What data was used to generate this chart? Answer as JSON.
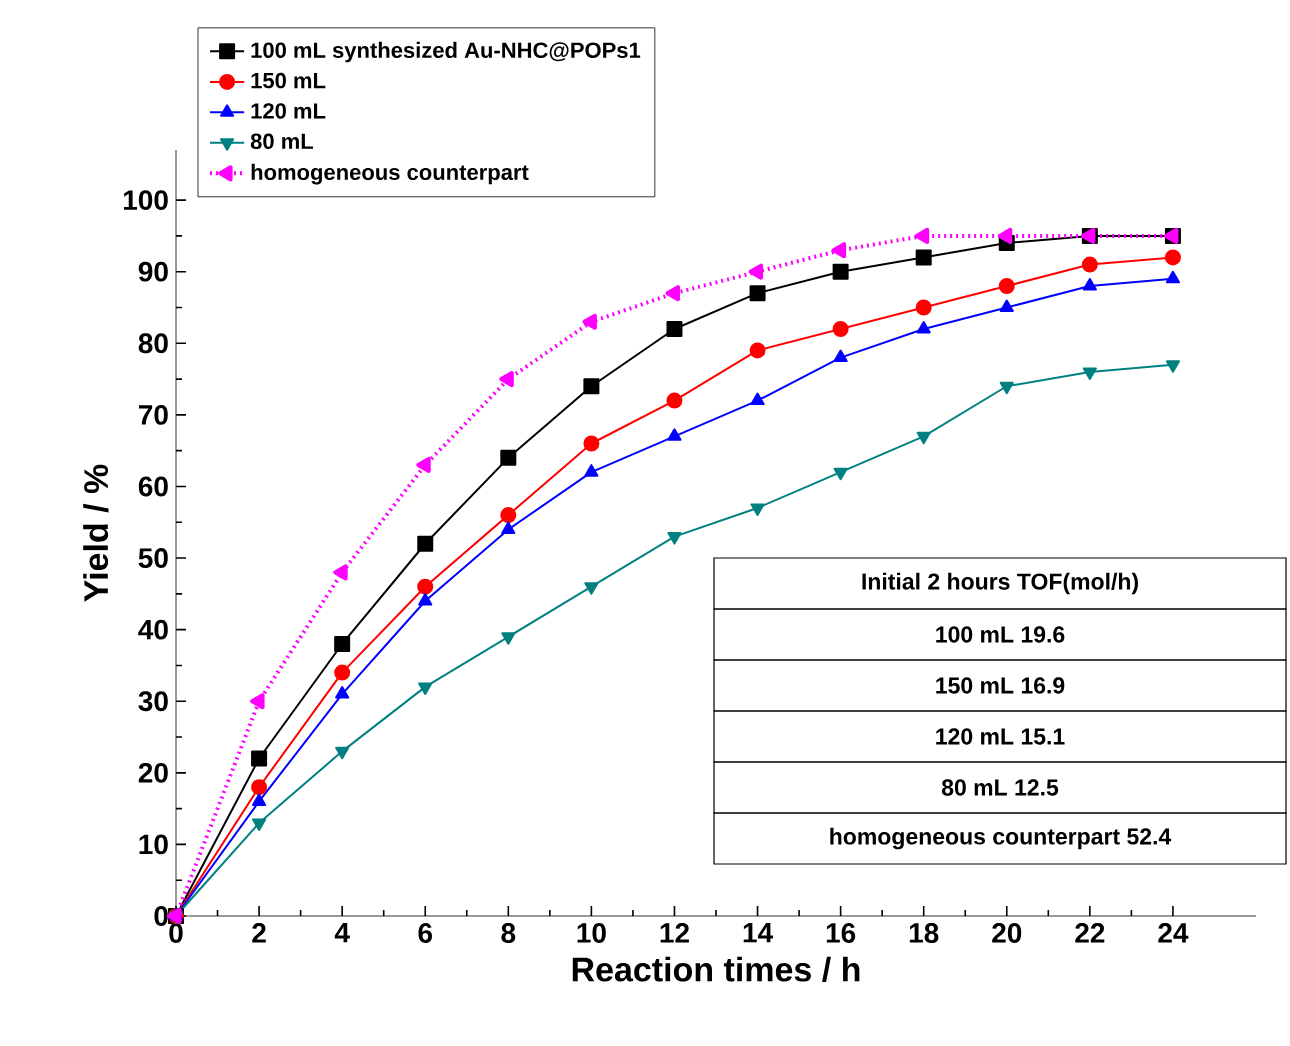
{
  "chart_data": {
    "type": "line",
    "xlabel": "Reaction times / h",
    "ylabel": "Yield / %",
    "x": [
      0,
      2,
      4,
      6,
      8,
      10,
      12,
      14,
      16,
      18,
      20,
      22,
      24
    ],
    "series": [
      {
        "name": "100 mL  synthesized Au-NHC@POPs1",
        "color": "#000000",
        "marker": "square",
        "line_style": "solid",
        "values": [
          0,
          22,
          38,
          52,
          64,
          74,
          82,
          87,
          90,
          92,
          94,
          95,
          95
        ]
      },
      {
        "name": "150 mL",
        "color": "#ff0000",
        "marker": "circle",
        "line_style": "solid",
        "values": [
          0,
          18,
          34,
          46,
          56,
          66,
          72,
          79,
          82,
          85,
          88,
          91,
          92
        ]
      },
      {
        "name": "120 mL",
        "color": "#0000ff",
        "marker": "triangle",
        "line_style": "solid",
        "values": [
          0,
          16,
          31,
          44,
          54,
          62,
          67,
          72,
          78,
          82,
          85,
          88,
          89
        ]
      },
      {
        "name": "80 mL",
        "color": "#008080",
        "marker": "triangle-down",
        "line_style": "solid",
        "values": [
          0,
          13,
          23,
          32,
          39,
          46,
          53,
          57,
          62,
          67,
          74,
          76,
          77
        ]
      },
      {
        "name": "homogeneous counterpart",
        "color": "#ff00ff",
        "marker": "triangle-left",
        "line_style": "dotted",
        "values": [
          0,
          30,
          48,
          63,
          75,
          83,
          87,
          90,
          93,
          95,
          95,
          95,
          95
        ]
      }
    ],
    "xlim": [
      0,
      26
    ],
    "ylim": [
      0,
      107
    ],
    "xticks": [
      0,
      2,
      4,
      6,
      8,
      10,
      12,
      14,
      16,
      18,
      20,
      22,
      24
    ],
    "yticks": [
      0,
      10,
      20,
      30,
      40,
      50,
      60,
      70,
      80,
      90,
      100
    ],
    "legend": "top left",
    "grid": false,
    "annotations": [
      "Initial 2 hours TOF(mol/h)",
      "100 mL 19.6",
      "150 mL 16.9",
      "120 mL 15.1",
      "80 mL 12.5",
      "homogeneous counterpart 52.4"
    ]
  }
}
